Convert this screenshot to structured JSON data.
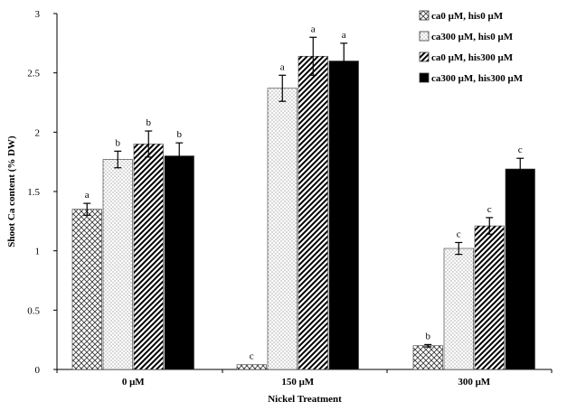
{
  "chart_data": {
    "type": "bar",
    "xlabel": "Nickel Treatment",
    "ylabel": "Shoot Ca content (% DW)",
    "ylim": [
      0,
      3
    ],
    "yticks": [
      "0",
      "0.5",
      "1",
      "1.5",
      "2",
      "2.5",
      "3"
    ],
    "ytick_values": [
      0,
      0.5,
      1,
      1.5,
      2,
      2.5,
      3
    ],
    "categories": [
      "0 μM",
      "150 μM",
      "300 μM"
    ],
    "legend_position": "top-right",
    "grid": false,
    "series": [
      {
        "name": "ca0 μM, his0 μM",
        "pattern": "crosshatch",
        "values": [
          1.35,
          0.04,
          0.2
        ],
        "errors": [
          0.05,
          0.0,
          0.01
        ],
        "labels": [
          "a",
          "c",
          "b"
        ]
      },
      {
        "name": "ca300 μM, his0 μM",
        "pattern": "dots",
        "values": [
          1.77,
          2.37,
          1.02
        ],
        "errors": [
          0.07,
          0.11,
          0.05
        ],
        "labels": [
          "b",
          "a",
          "c"
        ]
      },
      {
        "name": "ca0 μM, his300 μM",
        "pattern": "diagonal",
        "values": [
          1.9,
          2.64,
          1.21
        ],
        "errors": [
          0.11,
          0.16,
          0.07
        ],
        "labels": [
          "b",
          "a",
          "c"
        ]
      },
      {
        "name": "ca300 μM, his300 μM",
        "pattern": "solid",
        "values": [
          1.8,
          2.6,
          1.69
        ],
        "errors": [
          0.11,
          0.15,
          0.09
        ],
        "labels": [
          "b",
          "a",
          "c"
        ]
      }
    ]
  }
}
